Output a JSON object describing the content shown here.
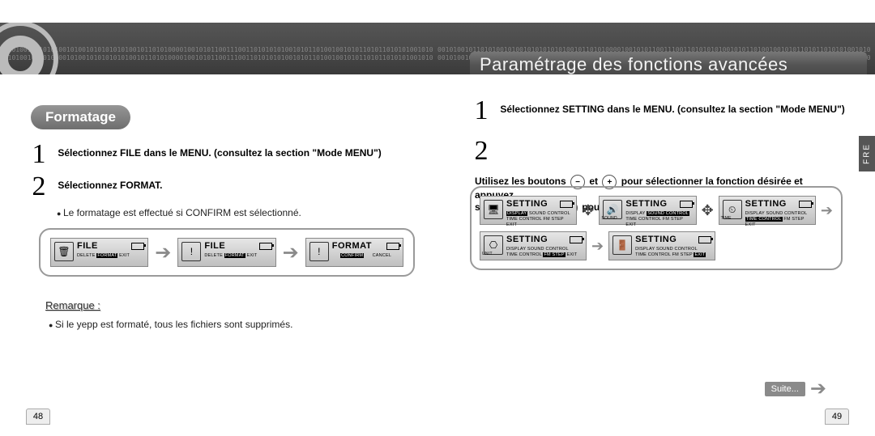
{
  "binary_pattern": "001010010110101001010010101010101001011010100001001010110011100110101010100101011010010010101101011010101001010",
  "right_header_title": "Paramétrage des fonctions avancées",
  "left": {
    "section_title": "Formatage",
    "step1": "Sélectionnez FILE dans le MENU. (consultez la section \"Mode MENU\")",
    "step2": "Sélectionnez FORMAT.",
    "step2_sub": "Le formatage est effectué si CONFIRM est sélectionné.",
    "note_label": "Remarque :",
    "note_text": "Si le yepp est formaté, tous les fichiers sont supprimés.",
    "page_num": "48",
    "lcd": [
      {
        "icon": "🗑",
        "title": "FILE",
        "line": "DELETE <hl>FORMAT</hl> EXIT"
      },
      {
        "icon": "!",
        "title": "FILE",
        "line": "DELETE <hl>FORMAT</hl> EXIT"
      },
      {
        "icon": "!",
        "title": "FORMAT",
        "line": "&nbsp;&nbsp;&nbsp;&nbsp;&nbsp;&nbsp;<hl>CONFIRM</hl>&nbsp;&nbsp;&nbsp;&nbsp;&nbsp;&nbsp;CANCEL"
      }
    ]
  },
  "right": {
    "step1": "Sélectionnez SETTING dans le MENU. (consultez la section \"Mode MENU\")",
    "step2a": "Utilisez les boutons",
    "step2b": "et",
    "step2c": "pour sélectionner la fonction désirée et appuyez",
    "step2d": "sur le bouton",
    "step2e": "pour valider votre choix.",
    "lang_tab": "FRE",
    "suite": "Suite...",
    "page_num": "49",
    "lcd_row1": [
      {
        "icon": "🖥",
        "iconlabel": "",
        "title": "SETTING",
        "l1": "<hl>DISPLAY</hl> SOUND CONTROL",
        "l2": "TIME CONTROL  FM STEP  EXIT",
        "after": "joy"
      },
      {
        "icon": "🔊",
        "iconlabel": "SOUND",
        "title": "SETTING",
        "l1": "DISPLAY <hl>SOUND CONTROL</hl>",
        "l2": "TIME CONTROL  FM STEP  EXIT",
        "after": "joy"
      },
      {
        "icon": "⏲",
        "iconlabel": "TIME",
        "title": "SETTING",
        "l1": "DISPLAY  SOUND CONTROL",
        "l2": "<hl>TIME CONTROL</hl>  FM STEP  EXIT",
        "after": "arrow"
      }
    ],
    "lcd_row2": [
      {
        "icon": "⎔",
        "iconlabel": "UNIT",
        "title": "SETTING",
        "l1": "DISPLAY  SOUND CONTROL",
        "l2": "TIME CONTROL <hl>FM STEP</hl> EXIT",
        "after": "arrow"
      },
      {
        "icon": "🚪",
        "iconlabel": "",
        "title": "SETTING",
        "l1": "DISPLAY  SOUND CONTROL",
        "l2": "TIME CONTROL  FM STEP <hl>EXIT</hl>",
        "after": ""
      }
    ]
  },
  "colors": {
    "header_grad_top": "#555555",
    "accent": "#8a8a8a",
    "border": "#9a9a9a"
  }
}
